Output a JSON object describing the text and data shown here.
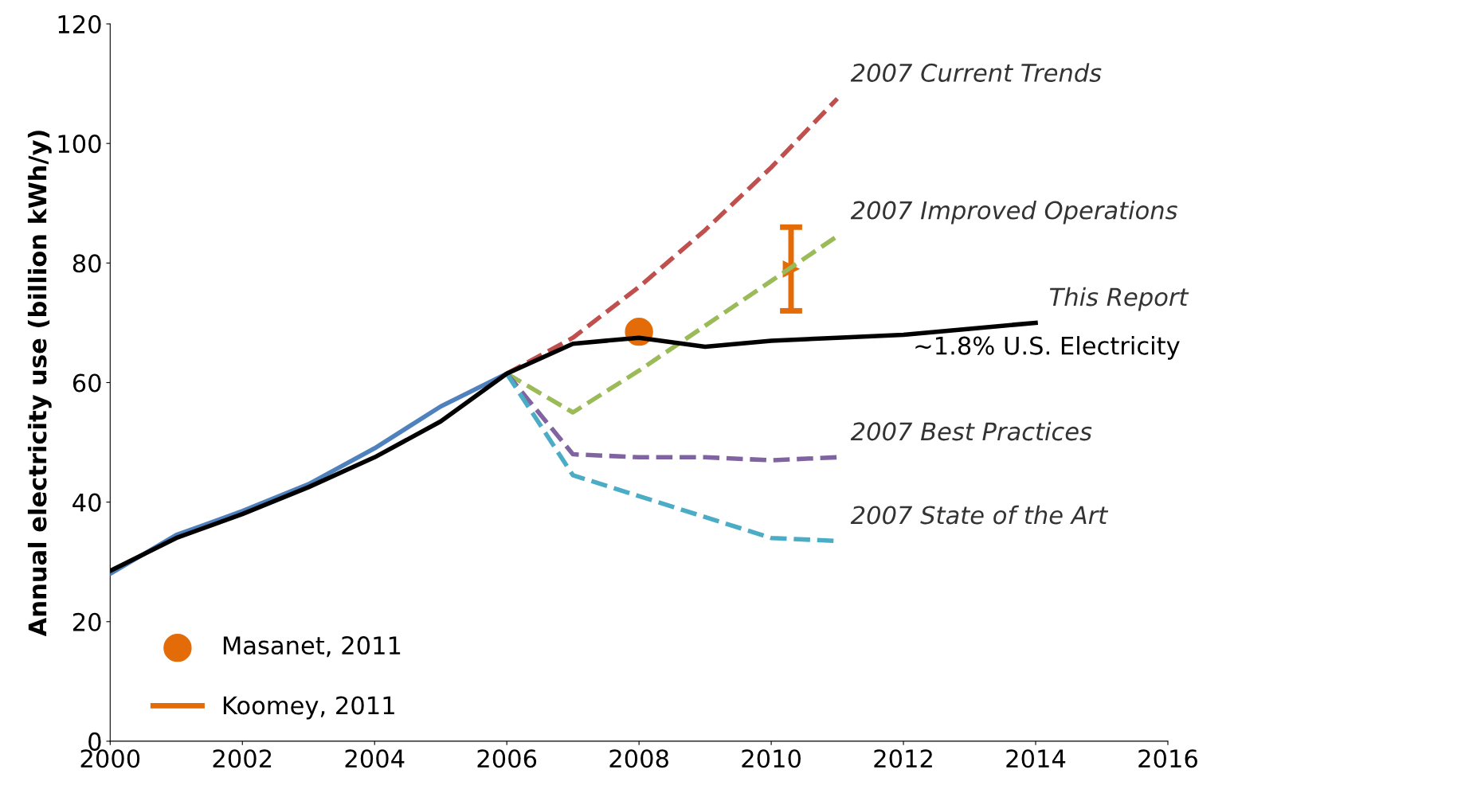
{
  "chart_data": {
    "type": "line",
    "ylabel": "Annual electricity use (billion kWh/y)",
    "xlim": [
      2000,
      2016
    ],
    "ylim": [
      0,
      120
    ],
    "xticks": [
      2000,
      2002,
      2004,
      2006,
      2008,
      2010,
      2012,
      2014,
      2016
    ],
    "yticks": [
      0,
      20,
      40,
      60,
      80,
      100,
      120
    ],
    "grid": false,
    "legend": "bottom left",
    "line_style": "solid",
    "marker": "none",
    "series": [
      {
        "color": "#4f81bd",
        "x": [
          2000,
          2001,
          2002,
          2003,
          2004,
          2005,
          2006
        ],
        "values": [
          28,
          34.5,
          38.5,
          43,
          49,
          56,
          61.5
        ]
      },
      {
        "name": "2007 Current Trends",
        "color": "#c0504d",
        "line_style": "dashed",
        "x": [
          2006,
          2007,
          2008,
          2009,
          2010,
          2011
        ],
        "values": [
          61.5,
          67.5,
          76,
          85.5,
          96,
          107.5
        ]
      },
      {
        "name": "2007 Improved Operations",
        "color": "#9bbb59",
        "line_style": "dashed",
        "x": [
          2006,
          2007,
          2008,
          2009,
          2010,
          2011
        ],
        "values": [
          61.5,
          55,
          62,
          69.5,
          77,
          84.5
        ]
      },
      {
        "name": "2007 Best Practices",
        "color": "#8064a2",
        "line_style": "dashed",
        "x": [
          2006,
          2007,
          2008,
          2009,
          2010,
          2011
        ],
        "values": [
          61.5,
          48,
          47.5,
          47.5,
          47,
          47.5
        ]
      },
      {
        "name": "2007 State of the Art",
        "color": "#4bacc6",
        "line_style": "dashed",
        "x": [
          2006,
          2007,
          2008,
          2009,
          2010,
          2011
        ],
        "values": [
          61.5,
          44.5,
          41,
          37.5,
          34,
          33.5
        ]
      },
      {
        "name": "This Report",
        "color": "#000000",
        "x": [
          2000,
          2001,
          2002,
          2003,
          2004,
          2005,
          2006,
          2007,
          2008,
          2009,
          2010,
          2011,
          2012,
          2013,
          2014
        ],
        "values": [
          28.5,
          34,
          38,
          42.5,
          47.5,
          53.5,
          61.5,
          66.5,
          67.5,
          66,
          67,
          67.5,
          68,
          69,
          70
        ]
      },
      {
        "name": "Masanet, 2011",
        "type": "scatter",
        "marker": "circle",
        "color": "#e36c09",
        "x": [
          2008
        ],
        "values": [
          68.5
        ]
      },
      {
        "name": "Koomey, 2011",
        "type": "scatter",
        "marker": "triangle",
        "color": "#e36c09",
        "x": [
          2010.3
        ],
        "values": [
          79
        ],
        "errors": [
          [
            72,
            86
          ]
        ]
      }
    ],
    "annotations": [
      "~1.8% U.S. Electricity"
    ]
  }
}
